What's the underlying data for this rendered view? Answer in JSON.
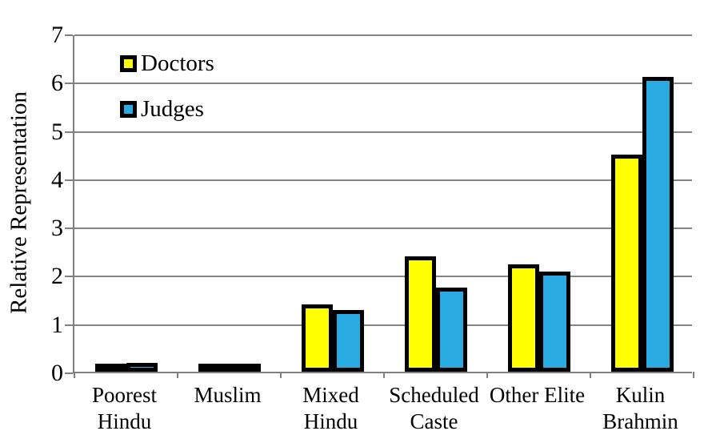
{
  "chart_data": {
    "type": "bar",
    "title": "",
    "ylabel": "Relative Representation",
    "xlabel": "",
    "ylim": [
      0,
      7
    ],
    "ytick_interval": 1,
    "grid": "horizontal",
    "legend_position": "inside-top-left",
    "categories": [
      "Poorest Hindu",
      "Muslim",
      "Mixed Hindu",
      "Scheduled Caste",
      "Other Elite",
      "Kulin Brahmin"
    ],
    "category_label_lines": [
      [
        "Poorest",
        "Hindu"
      ],
      [
        "Muslim"
      ],
      [
        "Mixed",
        "Hindu"
      ],
      [
        "Scheduled",
        "Caste"
      ],
      [
        "Other Elite"
      ],
      [
        "Kulin",
        "Brahmin"
      ]
    ],
    "series": [
      {
        "name": "Doctors",
        "color": "#FFFF00",
        "values": [
          0.08,
          0.12,
          1.4,
          2.39,
          2.22,
          4.5
        ]
      },
      {
        "name": "Judges",
        "color": "#29ABE2",
        "values": [
          0.19,
          0.15,
          1.27,
          1.75,
          2.08,
          6.1
        ]
      }
    ],
    "style": {
      "bar_border_color": "#000000",
      "gridline_color": "#848484",
      "axis_color": "#808080",
      "text_color": "#000000",
      "background": "#FFFFFF"
    }
  }
}
